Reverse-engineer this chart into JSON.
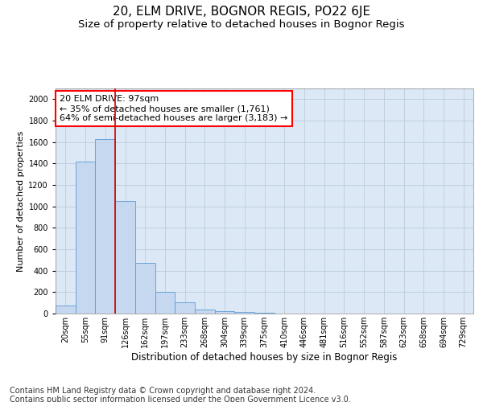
{
  "title1": "20, ELM DRIVE, BOGNOR REGIS, PO22 6JE",
  "title2": "Size of property relative to detached houses in Bognor Regis",
  "xlabel": "Distribution of detached houses by size in Bognor Regis",
  "ylabel": "Number of detached properties",
  "categories": [
    "20sqm",
    "55sqm",
    "91sqm",
    "126sqm",
    "162sqm",
    "197sqm",
    "233sqm",
    "268sqm",
    "304sqm",
    "339sqm",
    "375sqm",
    "410sqm",
    "446sqm",
    "481sqm",
    "516sqm",
    "552sqm",
    "587sqm",
    "623sqm",
    "658sqm",
    "694sqm",
    "729sqm"
  ],
  "values": [
    75,
    1420,
    1630,
    1050,
    470,
    200,
    105,
    40,
    25,
    15,
    5,
    3,
    2,
    2,
    1,
    1,
    1,
    0,
    0,
    0,
    0
  ],
  "bar_color": "#c5d8f0",
  "bar_edge_color": "#5b9bd5",
  "red_line_index": 2,
  "annotation_text": "20 ELM DRIVE: 97sqm\n← 35% of detached houses are smaller (1,761)\n64% of semi-detached houses are larger (3,183) →",
  "annotation_box_color": "white",
  "annotation_box_edge_color": "red",
  "red_line_color": "#cc0000",
  "ylim": [
    0,
    2100
  ],
  "yticks": [
    0,
    200,
    400,
    600,
    800,
    1000,
    1200,
    1400,
    1600,
    1800,
    2000
  ],
  "grid_color": "#c0d0e0",
  "background_color": "#dce8f5",
  "footer1": "Contains HM Land Registry data © Crown copyright and database right 2024.",
  "footer2": "Contains public sector information licensed under the Open Government Licence v3.0.",
  "title1_fontsize": 11,
  "title2_fontsize": 9.5,
  "annotation_fontsize": 8,
  "footer_fontsize": 7,
  "ylabel_fontsize": 8,
  "xlabel_fontsize": 8.5,
  "tick_fontsize": 7
}
